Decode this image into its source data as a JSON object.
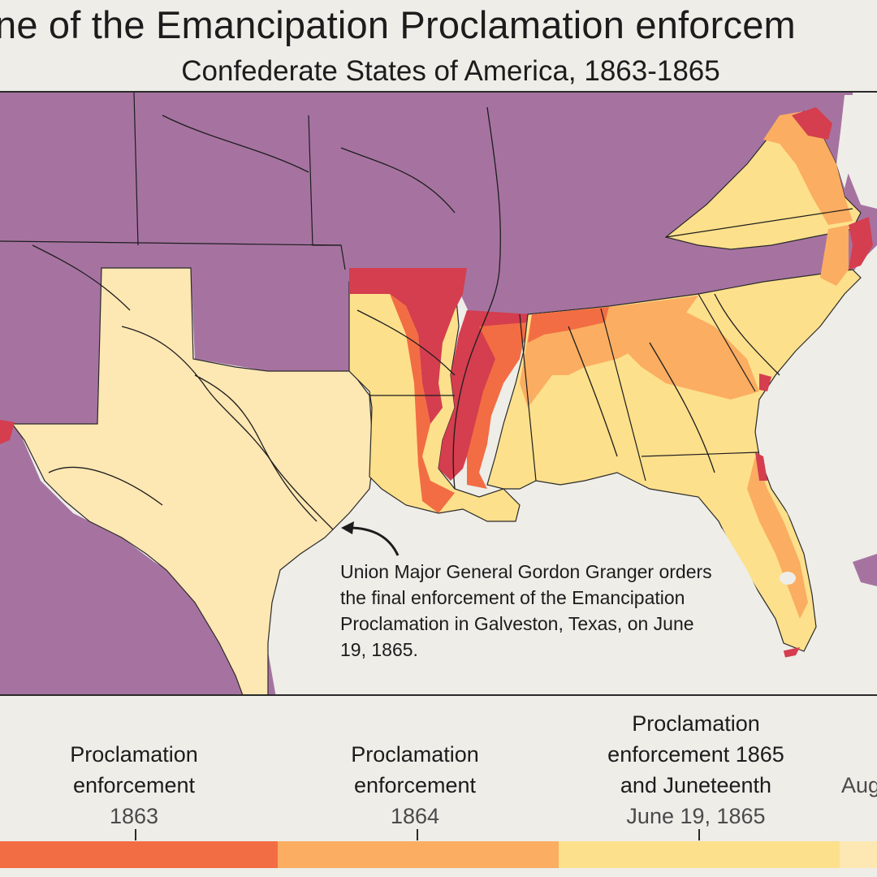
{
  "title": "ne of the Emancipation Proclamation enforcem",
  "subtitle": "Confederate States of America, 1863-1865",
  "annotation": "Union Major General Gordon Granger orders the final enforcement of the Emancipation Proclamation in Galveston, Texas, on June 19, 1865.",
  "colors": {
    "union": "#a673a1",
    "enforcement_1862_or_earlier": "#d43e4f",
    "enforcement_1863": "#f26d43",
    "enforcement_1864": "#fbad61",
    "enforcement_1865": "#fde08c",
    "enforcement_august_1865": "#fde7b3",
    "water": "#eeede8",
    "borders": "#2a2a2a"
  },
  "legend": [
    {
      "line1": "Proclamation",
      "line2": "enforcement",
      "year": "1863",
      "color": "#f26d43"
    },
    {
      "line1": "Proclamation",
      "line2": "enforcement",
      "year": "1864",
      "color": "#fbad61"
    },
    {
      "line1": "Proclamation",
      "line2": "enforcement 1865",
      "line3": "and Juneteenth",
      "year": "June 19, 1865",
      "color": "#fde08c"
    },
    {
      "line1": "Aug",
      "color": "#fde7b3"
    }
  ],
  "icons": {
    "annotation_arrow": "curved-arrow-icon"
  }
}
